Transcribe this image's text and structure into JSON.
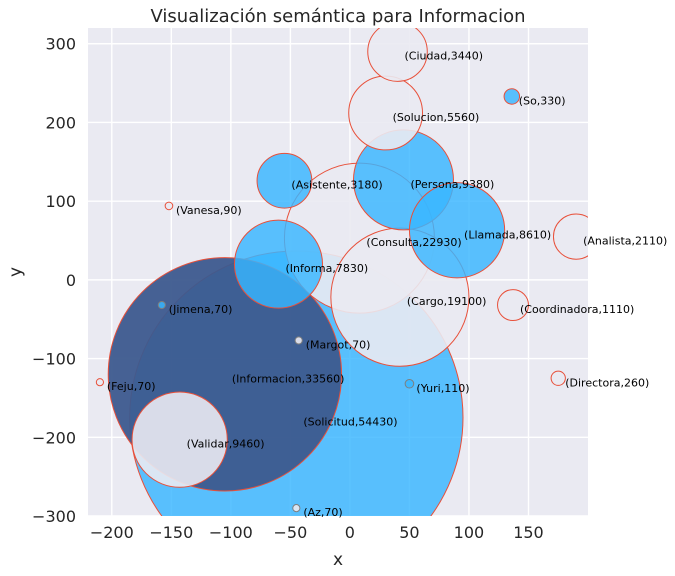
{
  "chart_data": {
    "type": "scatter",
    "subtype": "bubble",
    "title": "Visualización semántica para Informacion",
    "xlabel": "x",
    "ylabel": "y",
    "xlim": [
      -220,
      200
    ],
    "ylim": [
      -300,
      320
    ],
    "xticks": [
      -200,
      -150,
      -100,
      -50,
      0,
      50,
      100,
      150
    ],
    "xtick_labels": [
      "−200",
      "−150",
      "−100",
      "−50",
      "0",
      "50",
      "100",
      "150"
    ],
    "yticks": [
      -300,
      -200,
      -100,
      0,
      100,
      200,
      300
    ],
    "ytick_labels": [
      "−300",
      "−200",
      "−100",
      "0",
      "100",
      "200",
      "300"
    ],
    "grid": true,
    "legend": "none",
    "colors": {
      "background": "#eaeaf2",
      "grid": "#ffffff",
      "bubble_blue": "#38b6ff",
      "bubble_navy": "#3d5a8e",
      "bubble_light": "#eaeaf2",
      "edge_red": "#e8503a",
      "edge_dark": "#7f7f7f",
      "text": "#262626"
    },
    "points": [
      {
        "label": "(Solicitud,54430)",
        "x": -45,
        "y": -175,
        "r_data": 140,
        "style": "blue"
      },
      {
        "label": "(Informacion,33560)",
        "x": -105,
        "y": -120,
        "r_data": 98,
        "style": "navy"
      },
      {
        "label": "(Consulta,22930)",
        "x": 8,
        "y": 53,
        "r_data": 63,
        "style": "light"
      },
      {
        "label": "(Cargo,19100)",
        "x": 42,
        "y": -22,
        "r_data": 58,
        "style": "light"
      },
      {
        "label": "(Persona,9380)",
        "x": 45,
        "y": 127,
        "r_data": 42,
        "style": "blue"
      },
      {
        "label": "(Validar,9460)",
        "x": -143,
        "y": -203,
        "r_data": 40,
        "style": "light"
      },
      {
        "label": "(Llamada,8610)",
        "x": 90,
        "y": 63,
        "r_data": 40,
        "style": "blue"
      },
      {
        "label": "(Informa,7830)",
        "x": -60,
        "y": 20,
        "r_data": 37,
        "style": "blue"
      },
      {
        "label": "(Solucion,5560)",
        "x": 30,
        "y": 212,
        "r_data": 31,
        "style": "light"
      },
      {
        "label": "(Ciudad,3440)",
        "x": 40,
        "y": 290,
        "r_data": 25,
        "style": "light"
      },
      {
        "label": "(Asistente,3180)",
        "x": -55,
        "y": 126,
        "r_data": 23,
        "style": "blue"
      },
      {
        "label": "(Analista,2110)",
        "x": 190,
        "y": 55,
        "r_data": 19,
        "style": "light"
      },
      {
        "label": "(Coordinadora,1110)",
        "x": 137,
        "y": -32,
        "r_data": 13,
        "style": "light"
      },
      {
        "label": "(So,330)",
        "x": 136,
        "y": 233,
        "r_data": 6.5,
        "style": "blue"
      },
      {
        "label": "(Directora,260)",
        "x": 175,
        "y": -125,
        "r_data": 6,
        "style": "light"
      },
      {
        "label": "(Yuri,110)",
        "x": 50,
        "y": -132,
        "r_data": 3.6,
        "style": "blue_dark"
      },
      {
        "label": "(Vanesa,90)",
        "x": -152,
        "y": 94,
        "r_data": 3.2,
        "style": "light"
      },
      {
        "label": "(Jimena,70)",
        "x": -158,
        "y": -32,
        "r_data": 3,
        "style": "blue_dark"
      },
      {
        "label": "(Margot,70)",
        "x": -43,
        "y": -77,
        "r_data": 3,
        "style": "light_dark"
      },
      {
        "label": "(Feju,70)",
        "x": -210,
        "y": -130,
        "r_data": 3,
        "style": "light"
      },
      {
        "label": "(Az,70)",
        "x": -45,
        "y": -290,
        "r_data": 3,
        "style": "light_dark"
      }
    ]
  }
}
